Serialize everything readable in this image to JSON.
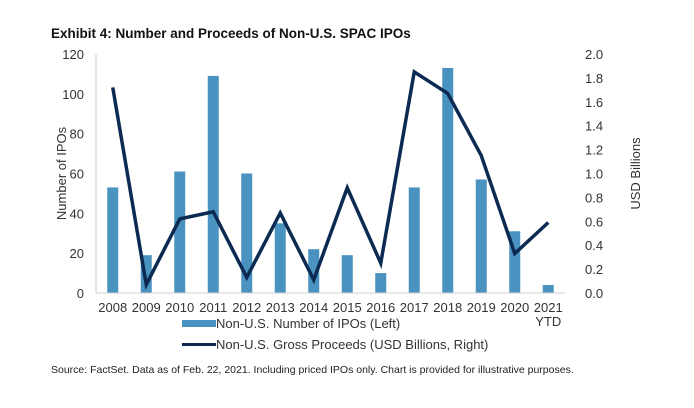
{
  "chart_data": {
    "type": "bar",
    "title": "Exhibit 4: Number and Proceeds of Non-U.S. SPAC IPOs",
    "categories": [
      "2008",
      "2009",
      "2010",
      "2011",
      "2012",
      "2013",
      "2014",
      "2015",
      "2016",
      "2017",
      "2018",
      "2019",
      "2020",
      "2021 YTD"
    ],
    "category_labels": [
      [
        "2008"
      ],
      [
        "2009"
      ],
      [
        "2010"
      ],
      [
        "2011"
      ],
      [
        "2012"
      ],
      [
        "2013"
      ],
      [
        "2014"
      ],
      [
        "2015"
      ],
      [
        "2016"
      ],
      [
        "2017"
      ],
      [
        "2018"
      ],
      [
        "2019"
      ],
      [
        "2020"
      ],
      [
        "2021",
        "YTD"
      ]
    ],
    "series": [
      {
        "name": "Non-U.S. Number of IPOs (Left)",
        "type": "bar",
        "axis": "left",
        "color": "#4a93c0",
        "values": [
          53,
          19,
          61,
          109,
          60,
          35,
          22,
          19,
          10,
          53,
          113,
          57,
          31,
          4
        ]
      },
      {
        "name": "Non-U.S. Gross Proceeds (USD Billions, Right)",
        "type": "line",
        "axis": "right",
        "color": "#0c2a52",
        "values": [
          1.72,
          0.07,
          0.62,
          0.68,
          0.13,
          0.67,
          0.11,
          0.88,
          0.25,
          1.85,
          1.67,
          1.15,
          0.33,
          0.59
        ]
      }
    ],
    "ylabel": "Number of IPOs",
    "ylabel_right": "USD Billions",
    "ylim": [
      0,
      120
    ],
    "ylim_right": [
      0,
      2.0
    ],
    "yticks": [
      "0",
      "20",
      "40",
      "60",
      "80",
      "100",
      "120"
    ],
    "yticks_right": [
      "0.0",
      "0.2",
      "0.4",
      "0.6",
      "0.8",
      "1.0",
      "1.2",
      "1.4",
      "1.6",
      "1.8",
      "2.0"
    ],
    "grid": false,
    "legend_position": "bottom"
  },
  "source": "Source: FactSet. Data as of Feb. 22, 2021. Including priced IPOs only. Chart is provided for illustrative purposes."
}
